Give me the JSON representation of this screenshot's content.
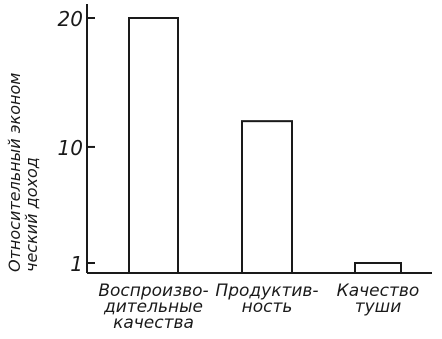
{
  "chart_data": {
    "type": "bar",
    "categories": [
      [
        "Воспроизво-",
        "дительные",
        "качества"
      ],
      [
        "Продуктив-",
        "ность"
      ],
      [
        "Качество",
        "туши"
      ]
    ],
    "values": [
      20,
      12,
      1
    ],
    "ylabel": [
      "Относительный эконом",
      "ческий доход"
    ],
    "yticks": [
      1,
      10,
      20
    ],
    "ylim": [
      0,
      20
    ],
    "grid": false,
    "colors": {
      "stroke": "#1a1a1a",
      "bar_fill": "#ffffff"
    }
  }
}
